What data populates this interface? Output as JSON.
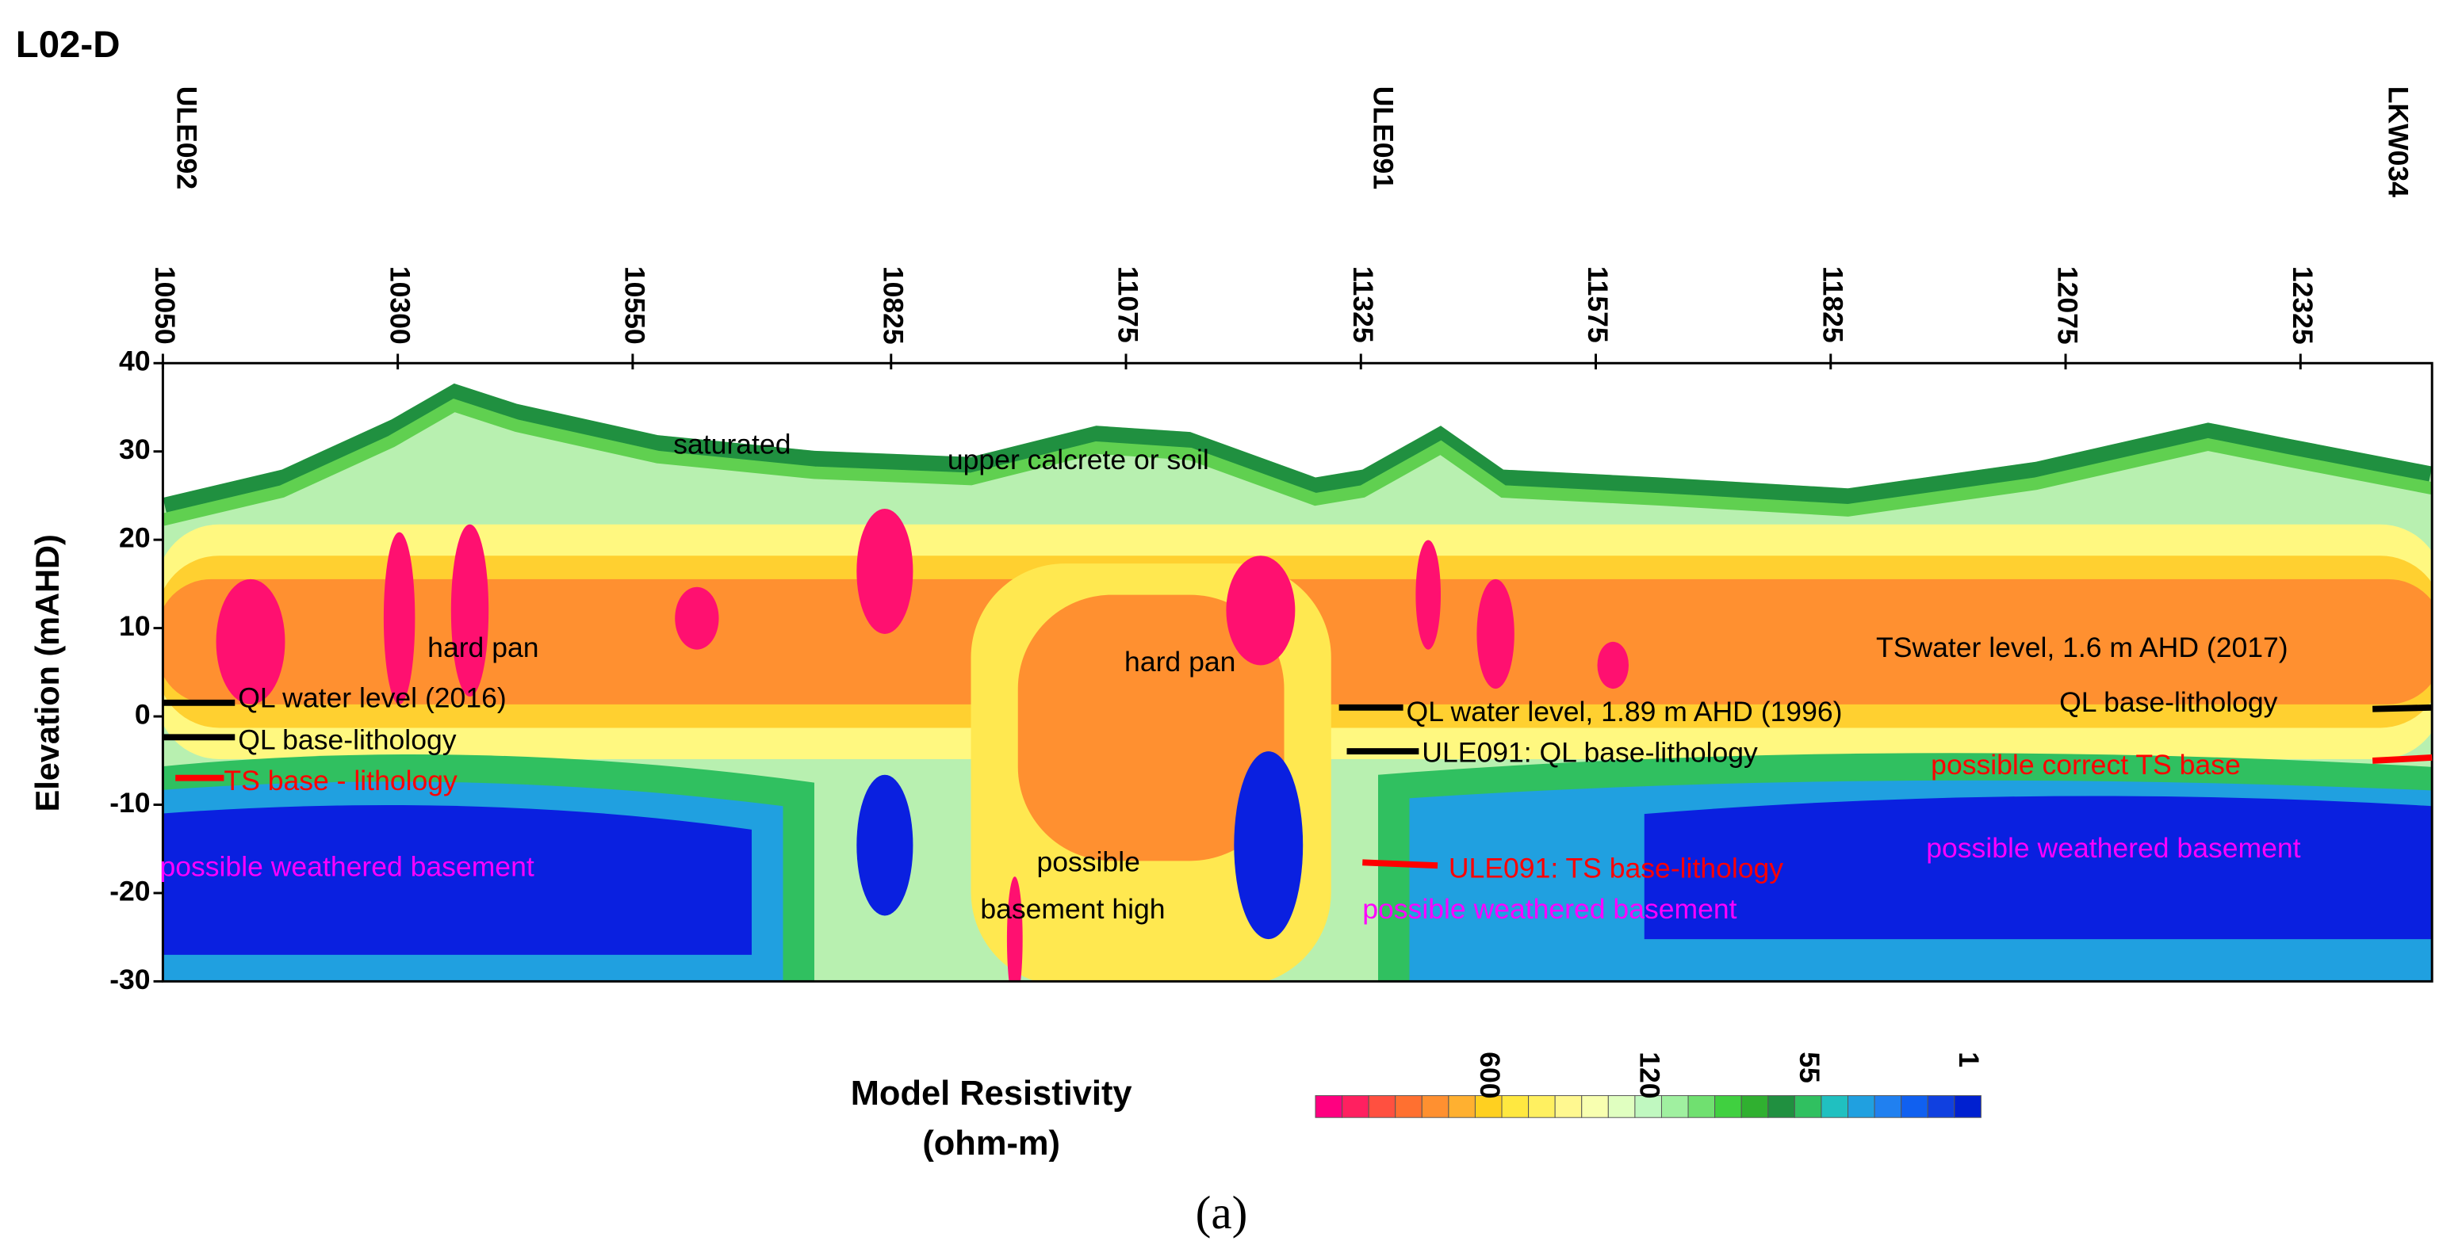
{
  "chart_data": {
    "type": "section",
    "title": "L02-D",
    "ylabel": "Elevation (mAHD)",
    "xlim": [
      10050,
      12465
    ],
    "xticks": [
      10050,
      10300,
      10550,
      10825,
      11075,
      11325,
      11575,
      11825,
      12075,
      12325
    ],
    "ylim": [
      -30,
      40
    ],
    "yticks": [
      40,
      30,
      20,
      10,
      0,
      -10,
      -20,
      -30
    ],
    "boreholes": [
      "ULE092",
      "ULE091",
      "LKW034"
    ],
    "annotations": [
      {
        "text": "saturated",
        "color": "#000000"
      },
      {
        "text": "upper calcrete or soil",
        "color": "#000000"
      },
      {
        "text": "hard pan",
        "color": "#000000"
      },
      {
        "text": "hard pan",
        "color": "#000000"
      },
      {
        "text": "QL water level (2016)",
        "color": "#000000"
      },
      {
        "text": "QL base-lithology",
        "color": "#000000"
      },
      {
        "text": "TS base - lithology",
        "color": "#ff0000"
      },
      {
        "text": "possible weathered basement",
        "color": "#ff00ff"
      },
      {
        "text": "possible",
        "color": "#000000"
      },
      {
        "text": "basement high",
        "color": "#000000"
      },
      {
        "text": "QL water level, 1.89 m AHD (1996)",
        "color": "#000000"
      },
      {
        "text": "ULE091: QL base-lithology",
        "color": "#000000"
      },
      {
        "text": "ULE091: TS base-lithology",
        "color": "#ff0000"
      },
      {
        "text": "possible weathered basement",
        "color": "#ff00ff"
      },
      {
        "text": "TSwater level, 1.6 m AHD (2017)",
        "color": "#000000"
      },
      {
        "text": "QL base-lithology",
        "color": "#000000"
      },
      {
        "text": "possible correct TS base",
        "color": "#ff0000"
      },
      {
        "text": "possible weathered basement",
        "color": "#ff00ff"
      }
    ],
    "colorbar": {
      "label": [
        "Model Resistivity",
        "(ohm-m)"
      ],
      "ticks": [
        600,
        120,
        55,
        1
      ],
      "colors": [
        "#ff0080",
        "#ff2060",
        "#ff5040",
        "#ff7030",
        "#ff9030",
        "#ffb030",
        "#ffd020",
        "#ffe840",
        "#fff060",
        "#fff890",
        "#f8ffb0",
        "#e0ffc0",
        "#c0f8c0",
        "#a0f0a0",
        "#70e070",
        "#40d040",
        "#30b030",
        "#209040",
        "#30c060",
        "#20c0c0",
        "#20a0e0",
        "#2080f0",
        "#1060f0",
        "#1040e0",
        "#0020d0"
      ]
    },
    "caption": "(a)"
  }
}
